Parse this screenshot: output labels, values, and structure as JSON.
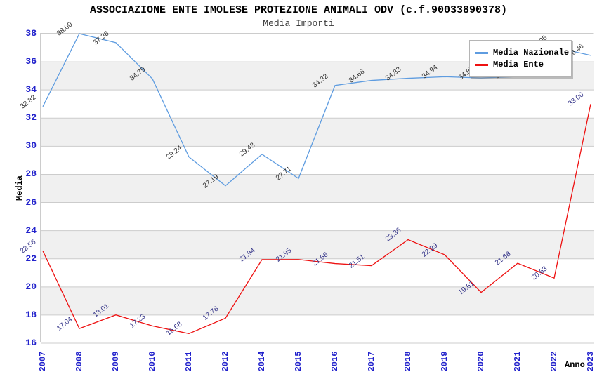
{
  "chart_data": {
    "type": "line",
    "title": "ASSOCIAZIONE ENTE IMOLESE PROTEZIONE ANIMALI ODV (c.f.90033890378)",
    "subtitle": "Media Importi",
    "xlabel": "Anno",
    "ylabel": "Media",
    "categories": [
      "2007",
      "2008",
      "2009",
      "2010",
      "2011",
      "2012",
      "2014",
      "2015",
      "2016",
      "2017",
      "2018",
      "2019",
      "2020",
      "2021",
      "2022",
      "2023"
    ],
    "series": [
      {
        "name": "Media Nazionale",
        "color": "#5e9ce0",
        "label_color": "#333333",
        "values": [
          32.82,
          38.0,
          37.36,
          34.79,
          29.24,
          27.19,
          29.43,
          27.71,
          34.32,
          34.68,
          34.83,
          34.94,
          34.85,
          34.95,
          37.05,
          36.46
        ]
      },
      {
        "name": "Media Ente",
        "color": "#ee1111",
        "label_color": "#333388",
        "values": [
          22.56,
          17.04,
          18.01,
          17.23,
          16.68,
          17.78,
          21.94,
          21.95,
          21.66,
          21.51,
          23.36,
          22.29,
          19.61,
          21.68,
          20.63,
          33.0
        ]
      }
    ],
    "ylim": [
      16,
      38
    ],
    "yticks": [
      16,
      18,
      20,
      22,
      24,
      26,
      28,
      30,
      32,
      34,
      36,
      38
    ],
    "grid": "horizontal",
    "legend_position": "top-right"
  },
  "styles": {
    "tick_color": "#2222cc",
    "grid_color": "#cccccc",
    "band_color": "#f0f0f0",
    "background": "#ffffff"
  }
}
